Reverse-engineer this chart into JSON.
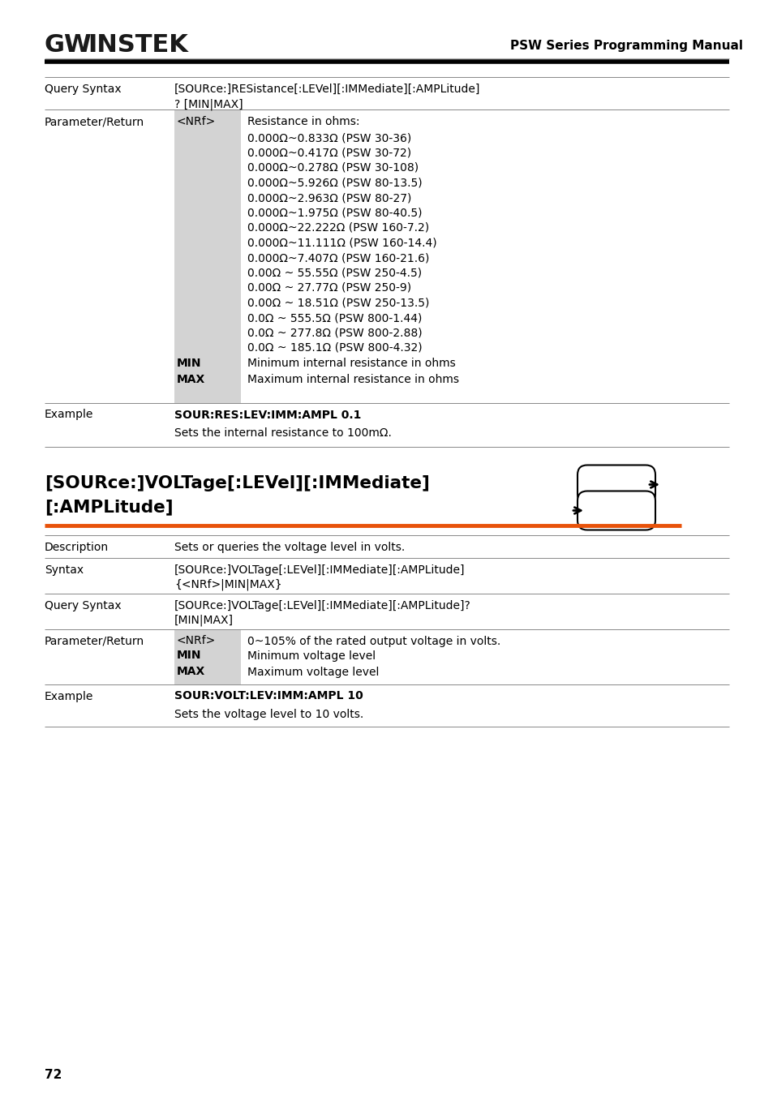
{
  "bg_color": "#ffffff",
  "text_color": "#000000",
  "header_title": "PSW Series Programming Manual",
  "orange_color": "#e8520a",
  "gray_bg": "#d3d3d3",
  "page_number": "72",
  "section1": {
    "query_syntax_label": "Query Syntax",
    "query_syntax_value": "[SOURce:]RESistance[:LEVel][:IMMediate][:AMPLitude]\n? [MIN|MAX]",
    "param_label": "Parameter/Return",
    "nrf_label": "<NRf>",
    "resistance_label": "Resistance in ohms:",
    "resistance_values": [
      "0.000Ω~0.833Ω (PSW 30-36)",
      "0.000Ω~0.417Ω (PSW 30-72)",
      "0.000Ω~0.278Ω (PSW 30-108)",
      "0.000Ω~5.926Ω (PSW 80-13.5)",
      "0.000Ω~2.963Ω (PSW 80-27)",
      "0.000Ω~1.975Ω (PSW 80-40.5)",
      "0.000Ω~22.222Ω (PSW 160-7.2)",
      "0.000Ω~11.111Ω (PSW 160-14.4)",
      "0.000Ω~7.407Ω (PSW 160-21.6)",
      "0.00Ω ~ 55.55Ω (PSW 250-4.5)",
      "0.00Ω ~ 27.77Ω (PSW 250-9)",
      "0.00Ω ~ 18.51Ω (PSW 250-13.5)",
      "0.0Ω ~ 555.5Ω (PSW 800-1.44)",
      "0.0Ω ~ 277.8Ω (PSW 800-2.88)",
      "0.0Ω ~ 185.1Ω (PSW 800-4.32)"
    ],
    "min_label": "MIN",
    "min_desc": "Minimum internal resistance in ohms",
    "max_label": "MAX",
    "max_desc": "Maximum internal resistance in ohms",
    "example_label": "Example",
    "example_value": "SOUR:RES:LEV:IMM:AMPL 0.1",
    "example_desc": "Sets the internal resistance to 100mΩ."
  },
  "section2": {
    "heading_line1": "[SOURce:]VOLTage[:LEVel][:IMMediate]",
    "heading_line2": "[:AMPLitude]",
    "desc_label": "Description",
    "desc_value": "Sets or queries the voltage level in volts.",
    "syntax_label": "Syntax",
    "syntax_value": "[SOURce:]VOLTage[:LEVel][:IMMediate][:AMPLitude]\n{<NRf>|MIN|MAX}",
    "query_syntax_label": "Query Syntax",
    "query_syntax_value": "[SOURce:]VOLTage[:LEVel][:IMMediate][:AMPLitude]?\n[MIN|MAX]",
    "param_label": "Parameter/Return",
    "nrf_label": "<NRf>",
    "nrf_desc": "0~105% of the rated output voltage in volts.",
    "min_label": "MIN",
    "min_desc": "Minimum voltage level",
    "max_label": "MAX",
    "max_desc": "Maximum voltage level",
    "example_label": "Example",
    "example_value": "SOUR:VOLT:LEV:IMM:AMPL 10",
    "example_desc": "Sets the voltage level to 10 volts."
  }
}
